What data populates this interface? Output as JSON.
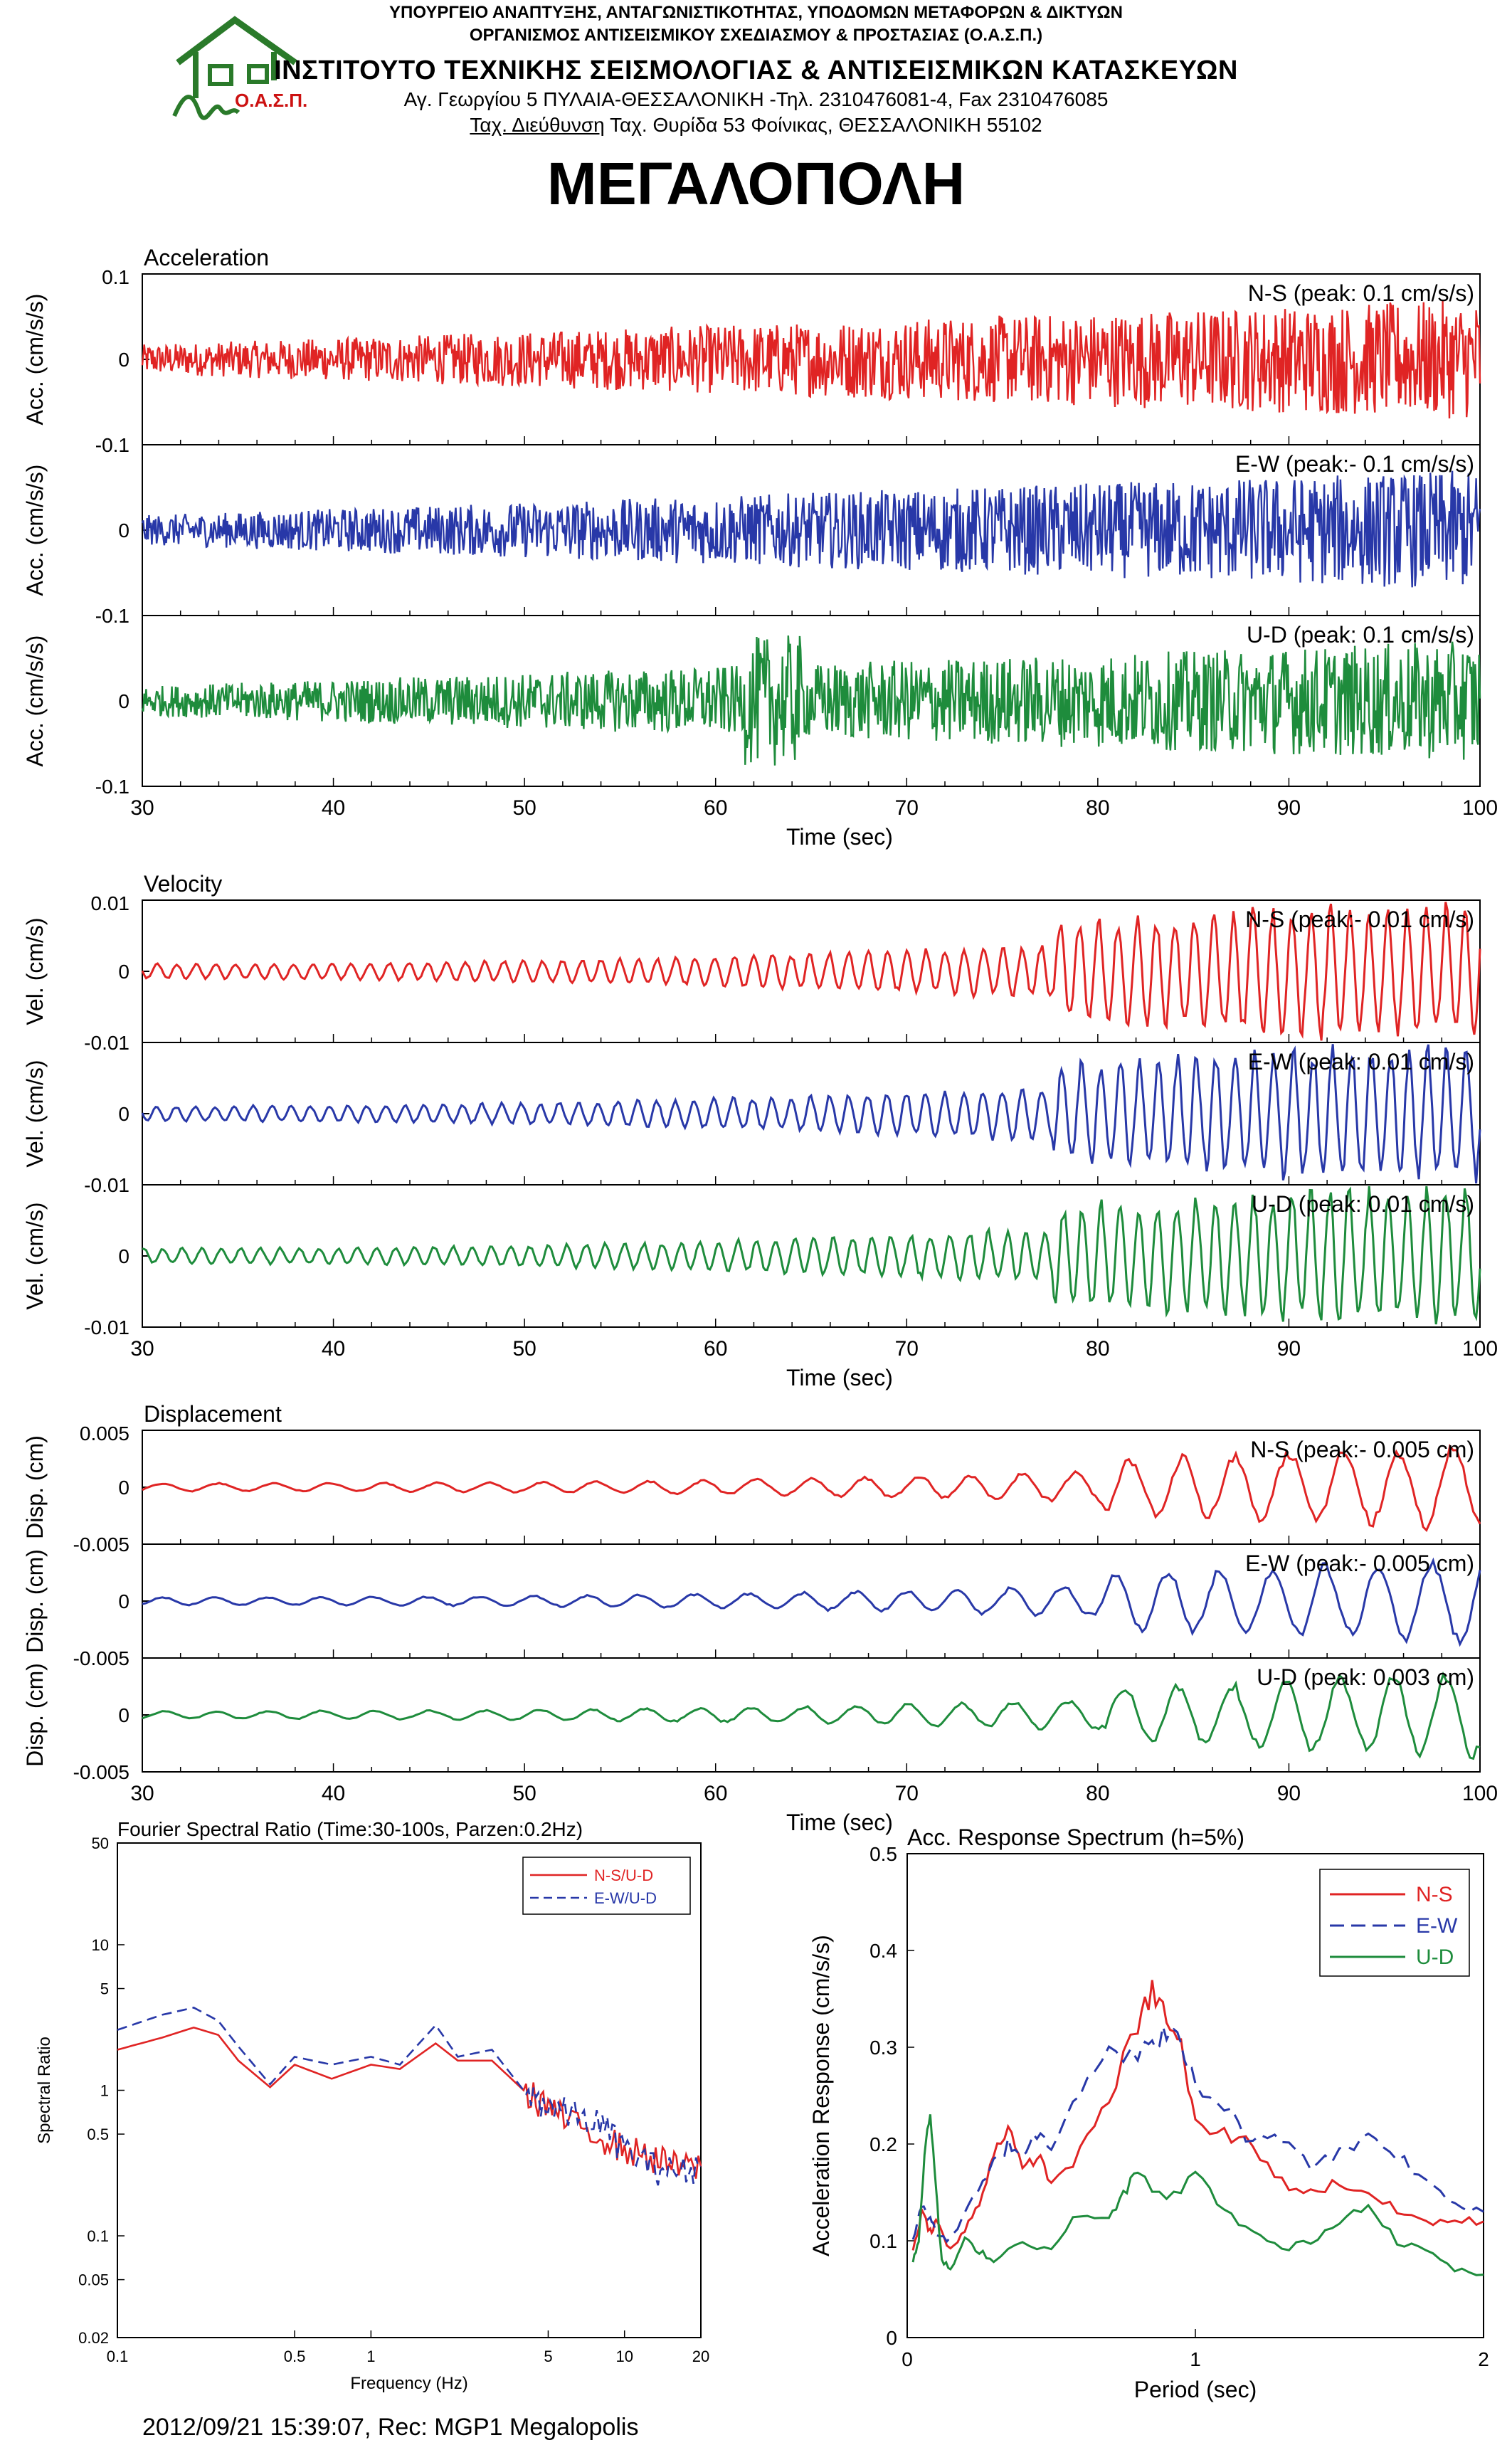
{
  "header": {
    "line1": "ΥΠΟΥΡΓΕΙΟ ΑΝΑΠΤΥΞΗΣ, ΑΝΤΑΓΩΝΙΣΤΙΚΟΤΗΤΑΣ, ΥΠΟΔΟΜΩΝ ΜΕΤΑΦΟΡΩΝ & ΔΙΚΤΥΩΝ",
    "line2": "ΟΡΓΑΝΙΣΜΟΣ ΑΝΤΙΣΕΙΣΜΙΚΟΥ ΣΧΕΔΙΑΣΜΟΥ & ΠΡΟΣΤΑΣΙΑΣ (Ο.Α.Σ.Π.)",
    "line3": "ΙΝΣΤΙΤΟΥΤΟ ΤΕΧΝΙΚΗΣ ΣΕΙΣΜΟΛΟΓΙΑΣ & ΑΝΤΙΣΕΙΣΜΙΚΩΝ ΚΑΤΑΣΚΕΥΩΝ",
    "line4": "Αγ. Γεωργίου 5 ΠΥΛΑΙΑ-ΘΕΣΣΑΛΟΝΙΚΗ -Τηλ. 2310476081-4,  Fax 2310476085",
    "line5_underlined": "Ταχ. Διεύθυνση",
    "line5_rest": " Ταχ. Θυρίδα 53 Φοίνικας, ΘΕΣΣΑΛΟΝΙΚΗ 55102",
    "logo_text": "Ο.Α.Σ.Π.",
    "title": "ΜΕΓΑΛΟΠΟΛΗ"
  },
  "footer": "2012/09/21 15:39:07, Rec: MGP1 Megalopolis",
  "colors": {
    "ns": "#e02424",
    "ew": "#2838a8",
    "ud": "#1e8c3c",
    "logo": "#2a7a2a",
    "logo_text": "#cc1111"
  },
  "chart_data": [
    {
      "type": "line",
      "title": "Acceleration",
      "xlabel": "Time (sec)",
      "xlim": [
        30,
        100
      ],
      "xticks": [
        "30",
        "40",
        "50",
        "60",
        "70",
        "80",
        "90",
        "100"
      ],
      "ylabel": "Acc. (cm/s/s)",
      "ylim": [
        -0.1,
        0.1
      ],
      "yticks": [
        "0.1",
        "0",
        "-0.1"
      ],
      "series": [
        {
          "name": "N-S",
          "label": "N-S (peak: 0.1 cm/s/s)",
          "peak": 0.1,
          "color": "#e02424"
        },
        {
          "name": "E-W",
          "label": "E-W (peak:- 0.1 cm/s/s)",
          "peak": -0.1,
          "color": "#2838a8"
        },
        {
          "name": "U-D",
          "label": "U-D (peak: 0.1 cm/s/s)",
          "peak": 0.1,
          "color": "#1e8c3c"
        }
      ]
    },
    {
      "type": "line",
      "title": "Velocity",
      "xlabel": "Time (sec)",
      "xlim": [
        30,
        100
      ],
      "xticks": [
        "30",
        "40",
        "50",
        "60",
        "70",
        "80",
        "90",
        "100"
      ],
      "ylabel": "Vel. (cm/s)",
      "ylim": [
        -0.01,
        0.01
      ],
      "yticks": [
        "0.01",
        "0",
        "-0.01"
      ],
      "series": [
        {
          "name": "N-S",
          "label": "N-S (peak:- 0.01 cm/s)",
          "peak": -0.01,
          "color": "#e02424"
        },
        {
          "name": "E-W",
          "label": "E-W (peak: 0.01 cm/s)",
          "peak": 0.01,
          "color": "#2838a8"
        },
        {
          "name": "U-D",
          "label": "U-D (peak: 0.01 cm/s)",
          "peak": 0.01,
          "color": "#1e8c3c"
        }
      ]
    },
    {
      "type": "line",
      "title": "Displacement",
      "xlabel": "Time (sec)",
      "xlim": [
        30,
        100
      ],
      "xticks": [
        "30",
        "40",
        "50",
        "60",
        "70",
        "80",
        "90",
        "100"
      ],
      "ylabel": "Disp. (cm)",
      "ylim": [
        -0.005,
        0.005
      ],
      "yticks": [
        "0.005",
        "0",
        "-0.005"
      ],
      "series": [
        {
          "name": "N-S",
          "label": "N-S (peak:- 0.005 cm)",
          "peak": -0.005,
          "color": "#e02424"
        },
        {
          "name": "E-W",
          "label": "E-W (peak:- 0.005 cm)",
          "peak": -0.005,
          "color": "#2838a8"
        },
        {
          "name": "U-D",
          "label": "U-D (peak: 0.003 cm)",
          "peak": 0.003,
          "color": "#1e8c3c"
        }
      ]
    },
    {
      "type": "line",
      "title": "Fourier Spectral Ratio (Time:30-100s, Parzen:0.2Hz)",
      "xlabel": "Frequency (Hz)",
      "ylabel": "Spectral Ratio",
      "x_scale": "log",
      "y_scale": "log",
      "xlim": [
        0.1,
        20
      ],
      "ylim": [
        0.02,
        50
      ],
      "xticks": [
        "0.1",
        "0.5",
        "1",
        "5",
        "10",
        "20"
      ],
      "yticks": [
        "50",
        "10",
        "5",
        "1",
        "0.5",
        "0.1",
        "0.05",
        "0.02"
      ],
      "legend_position": "top-right",
      "series": [
        {
          "name": "N-S/U-D",
          "color": "#e02424",
          "dash": "solid",
          "x": [
            0.1,
            0.15,
            0.2,
            0.25,
            0.3,
            0.4,
            0.5,
            0.7,
            1.0,
            1.3,
            1.8,
            2.2,
            3.0,
            4.0,
            5.0,
            6.0,
            8.0,
            10,
            13,
            16,
            20
          ],
          "y": [
            1.9,
            2.3,
            2.7,
            2.4,
            1.6,
            1.05,
            1.5,
            1.2,
            1.5,
            1.4,
            2.1,
            1.6,
            1.6,
            1.0,
            0.8,
            0.6,
            0.5,
            0.4,
            0.35,
            0.3,
            0.3
          ]
        },
        {
          "name": "E-W/U-D",
          "color": "#2838a8",
          "dash": "dashed",
          "x": [
            0.1,
            0.15,
            0.2,
            0.25,
            0.3,
            0.4,
            0.5,
            0.7,
            1.0,
            1.3,
            1.8,
            2.2,
            3.0,
            4.0,
            5.0,
            6.0,
            8.0,
            10,
            13,
            16,
            20
          ],
          "y": [
            2.6,
            3.3,
            3.7,
            3.0,
            2.0,
            1.1,
            1.7,
            1.5,
            1.7,
            1.5,
            2.8,
            1.7,
            1.9,
            1.0,
            0.8,
            0.7,
            0.6,
            0.4,
            0.3,
            0.28,
            0.3
          ]
        }
      ]
    },
    {
      "type": "line",
      "title": "Acc. Response Spectrum (h=5%)",
      "xlabel": "Period (sec)",
      "ylabel": "Acceleration Response (cm/s/s)",
      "xlim": [
        0,
        2
      ],
      "ylim": [
        0,
        0.5
      ],
      "xticks": [
        "0",
        "1",
        "2"
      ],
      "yticks": [
        "0.5",
        "0.4",
        "0.3",
        "0.2",
        "0.1",
        "0"
      ],
      "legend_position": "top-right",
      "series": [
        {
          "name": "N-S",
          "color": "#e02424",
          "dash": "solid",
          "x": [
            0.02,
            0.05,
            0.08,
            0.1,
            0.15,
            0.2,
            0.25,
            0.3,
            0.35,
            0.4,
            0.45,
            0.5,
            0.6,
            0.7,
            0.8,
            0.85,
            0.9,
            0.95,
            1.0,
            1.1,
            1.2,
            1.3,
            1.4,
            1.5,
            1.6,
            1.7,
            1.8,
            1.9,
            2.0
          ],
          "y": [
            0.09,
            0.13,
            0.11,
            0.12,
            0.09,
            0.11,
            0.14,
            0.19,
            0.22,
            0.17,
            0.19,
            0.16,
            0.19,
            0.25,
            0.32,
            0.36,
            0.33,
            0.3,
            0.22,
            0.21,
            0.2,
            0.16,
            0.15,
            0.16,
            0.15,
            0.13,
            0.12,
            0.12,
            0.12
          ]
        },
        {
          "name": "E-W",
          "color": "#2838a8",
          "dash": "dashed",
          "x": [
            0.02,
            0.05,
            0.08,
            0.1,
            0.15,
            0.2,
            0.25,
            0.3,
            0.35,
            0.4,
            0.45,
            0.5,
            0.6,
            0.7,
            0.8,
            0.85,
            0.9,
            0.95,
            1.0,
            1.1,
            1.2,
            1.3,
            1.4,
            1.5,
            1.6,
            1.7,
            1.8,
            1.9,
            2.0
          ],
          "y": [
            0.1,
            0.14,
            0.12,
            0.11,
            0.1,
            0.13,
            0.15,
            0.18,
            0.2,
            0.19,
            0.21,
            0.2,
            0.26,
            0.3,
            0.29,
            0.3,
            0.32,
            0.3,
            0.26,
            0.24,
            0.2,
            0.21,
            0.18,
            0.19,
            0.21,
            0.19,
            0.16,
            0.14,
            0.13
          ]
        },
        {
          "name": "U-D",
          "color": "#1e8c3c",
          "dash": "solid",
          "x": [
            0.02,
            0.04,
            0.06,
            0.08,
            0.1,
            0.12,
            0.15,
            0.2,
            0.25,
            0.3,
            0.4,
            0.5,
            0.6,
            0.7,
            0.75,
            0.8,
            0.9,
            1.0,
            1.1,
            1.2,
            1.3,
            1.4,
            1.5,
            1.6,
            1.7,
            1.8,
            1.9,
            2.0
          ],
          "y": [
            0.08,
            0.1,
            0.19,
            0.24,
            0.15,
            0.08,
            0.07,
            0.1,
            0.09,
            0.08,
            0.1,
            0.09,
            0.13,
            0.12,
            0.15,
            0.17,
            0.14,
            0.17,
            0.13,
            0.11,
            0.09,
            0.1,
            0.12,
            0.14,
            0.1,
            0.09,
            0.07,
            0.065
          ]
        }
      ]
    }
  ]
}
